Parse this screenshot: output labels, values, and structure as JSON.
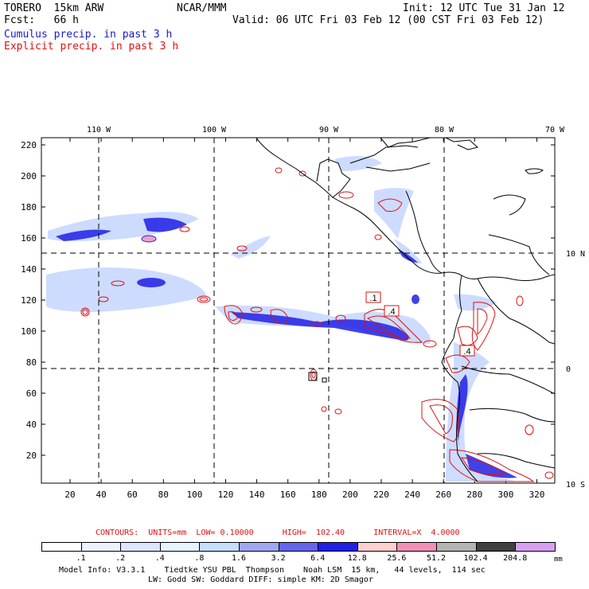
{
  "header": {
    "model_name": "TORERO  15km ARW",
    "center": "NCAR/MMM",
    "init": "Init: 12 UTC Tue 31 Jan 12",
    "forecast": "Fcst:   66 h",
    "valid": "Valid: 06 UTC Fri 03 Feb 12 (00 CST Fri 03 Feb 12)",
    "field1": "Cumulus precip. in past 3 h",
    "field2": "Explicit precip. in past 3 h"
  },
  "map": {
    "top_lon_labels": [
      "110 W",
      "100 W",
      "90 W",
      "80 W",
      "70 W"
    ],
    "right_lat_labels": [
      "10 N",
      "0",
      "10 S"
    ],
    "y_ticks": [
      "220",
      "200",
      "180",
      "160",
      "140",
      "120",
      "100",
      "80",
      "60",
      "40",
      "20"
    ],
    "x_ticks": [
      "20",
      "40",
      "60",
      "80",
      "100",
      "120",
      "140",
      "160",
      "180",
      "200",
      "220",
      "240",
      "260",
      "280",
      "300",
      "320"
    ],
    "box_labels": [
      ".1",
      ".4",
      ".4"
    ]
  },
  "contour_info": {
    "label": "CONTOURS:  UNITS=mm  LOW= 0.10000      HIGH=  102.40      INTERVAL=X  4.0000"
  },
  "colorbar": {
    "unit": "mm",
    "labels": [
      ".1",
      ".2",
      ".4",
      ".8",
      "1.6",
      "3.2",
      "6.4",
      "12.8",
      "25.6",
      "51.2",
      "102.4",
      "204.8"
    ],
    "colors": [
      "#ffffff",
      "#eef2ff",
      "#dce6ff",
      "#e6f4ff",
      "#c6deff",
      "#9fa8f0",
      "#6464ee",
      "#2020e6",
      "#ffd0d0",
      "#f090b8",
      "#b4b4b4",
      "#404040",
      "#d8a0f0"
    ]
  },
  "model_info": {
    "line1": "Model Info: V3.3.1    Tiedtke YSU PBL  Thompson    Noah LSM  15 km,   44 levels,  114 sec",
    "line2": "LW: Godd SW: Goddard DIFF: simple KM: 2D Smagor"
  }
}
